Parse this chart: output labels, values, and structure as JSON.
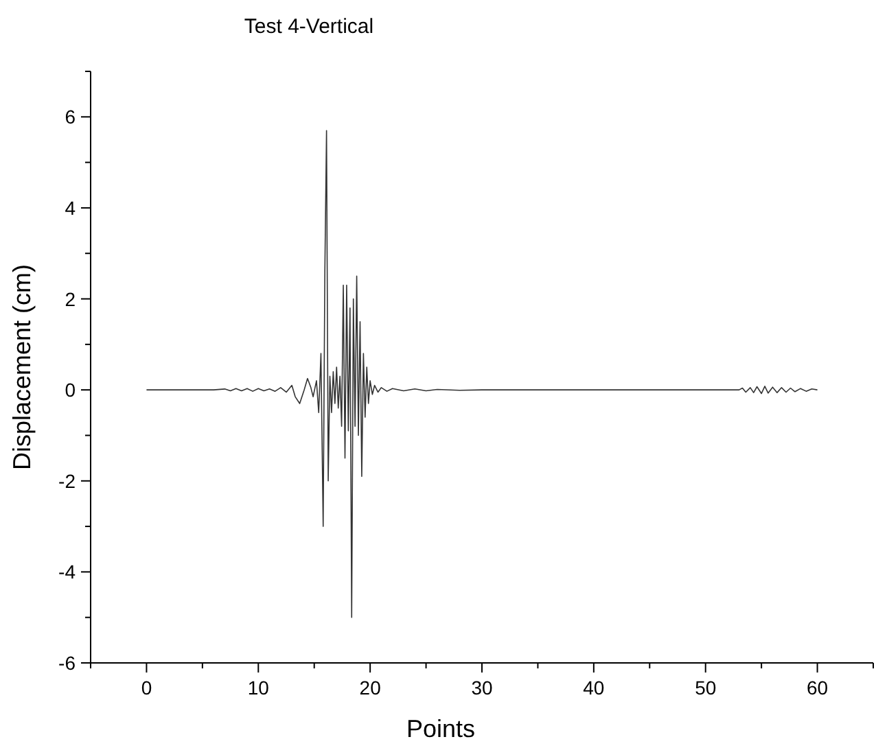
{
  "chart_data": {
    "type": "line",
    "title": "Test 4-Vertical",
    "xlabel": "Points",
    "ylabel": "Displacement (cm)",
    "xlim": [
      -5,
      65
    ],
    "ylim": [
      -6,
      7
    ],
    "xticks": [
      {
        "value": -5,
        "label": null
      },
      0,
      {
        "value": 5,
        "label": null
      },
      10,
      {
        "value": 15,
        "label": null
      },
      20,
      {
        "value": 25,
        "label": null
      },
      30,
      {
        "value": 35,
        "label": null
      },
      40,
      {
        "value": 45,
        "label": null
      },
      50,
      {
        "value": 55,
        "label": null
      },
      60,
      {
        "value": 65,
        "label": null
      }
    ],
    "yticks": [
      -6,
      {
        "value": -5,
        "label": null
      },
      -4,
      {
        "value": -3,
        "label": null
      },
      -2,
      {
        "value": -1,
        "label": null
      },
      0,
      {
        "value": 1,
        "label": null
      },
      2,
      {
        "value": 3,
        "label": null
      },
      4,
      {
        "value": 5,
        "label": null
      },
      6,
      {
        "value": 7,
        "label": null
      }
    ],
    "grid": false,
    "marker": "none",
    "line_style": "solid",
    "series": [
      {
        "color": "#333333",
        "x": [
          0,
          6,
          7,
          7.5,
          8,
          8.5,
          9,
          9.5,
          10,
          10.5,
          11,
          11.5,
          12,
          12.5,
          13,
          13.3,
          13.7,
          14.1,
          14.4,
          14.7,
          14.9,
          15.2,
          15.4,
          15.6,
          15.8,
          15.95,
          16.1,
          16.25,
          16.4,
          16.55,
          16.7,
          16.85,
          17,
          17.15,
          17.3,
          17.45,
          17.6,
          17.75,
          17.9,
          18.05,
          18.2,
          18.35,
          18.5,
          18.65,
          18.8,
          18.95,
          19.1,
          19.25,
          19.4,
          19.55,
          19.7,
          19.85,
          20,
          20.2,
          20.4,
          20.7,
          21,
          21.5,
          22,
          23,
          24,
          25,
          26,
          28,
          30,
          53,
          53.3,
          53.6,
          54,
          54.3,
          54.6,
          55,
          55.3,
          55.6,
          56,
          56.4,
          56.8,
          57.2,
          57.6,
          58,
          58.5,
          59,
          59.5,
          60
        ],
        "values": [
          0,
          0,
          0.02,
          -0.02,
          0.03,
          -0.02,
          0.03,
          -0.03,
          0.03,
          -0.02,
          0.02,
          -0.03,
          0.05,
          -0.05,
          0.1,
          -0.15,
          -0.3,
          0,
          0.25,
          0.05,
          -0.15,
          0.2,
          -0.5,
          0.8,
          -3,
          2.6,
          5.7,
          -2,
          0.3,
          -0.5,
          0.4,
          -0.3,
          0.5,
          -0.4,
          0.3,
          -0.8,
          2.3,
          -1.5,
          2.3,
          -0.9,
          1.8,
          -5,
          2,
          -0.8,
          2.5,
          -1,
          1.5,
          -1.9,
          0.8,
          -0.6,
          0.5,
          -0.3,
          0.2,
          -0.1,
          0.1,
          -0.05,
          0.05,
          -0.03,
          0.03,
          -0.02,
          0.02,
          -0.02,
          0.01,
          -0.01,
          0,
          0,
          0.04,
          -0.05,
          0.05,
          -0.06,
          0.07,
          -0.08,
          0.08,
          -0.07,
          0.06,
          -0.06,
          0.05,
          -0.05,
          0.04,
          -0.04,
          0.03,
          -0.03,
          0.02,
          0
        ]
      }
    ]
  }
}
